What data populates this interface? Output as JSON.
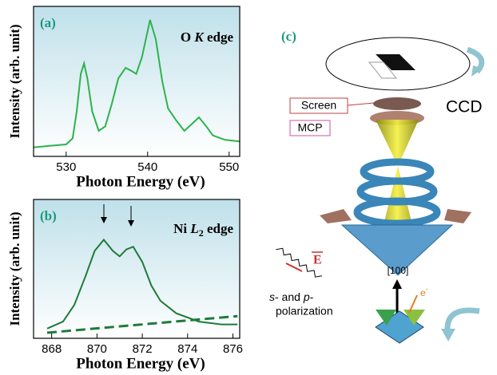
{
  "chart_data": [
    {
      "type": "line",
      "panel": "(a)",
      "annotation": [
        "O ",
        "K",
        " edge"
      ],
      "x_label": "Photon Energy (eV)",
      "y_label": "Intensity (arb. unit)",
      "xlim": [
        526,
        551.3
      ],
      "ylim": [
        0,
        1
      ],
      "xticks": [
        530,
        540,
        550
      ],
      "series": [
        {
          "color": "#2db34a",
          "x": [
            526,
            528,
            530,
            530.8,
            531.3,
            531.8,
            532.2,
            532.6,
            533.2,
            534,
            534.8,
            535.6,
            536.4,
            537.3,
            538,
            538.6,
            539.3,
            540.3,
            541,
            541.8,
            542.5,
            543.5,
            544.5,
            545.5,
            546.3,
            547.2,
            548,
            549.5,
            551.3
          ],
          "values": [
            0.06,
            0.07,
            0.08,
            0.12,
            0.3,
            0.55,
            0.62,
            0.52,
            0.3,
            0.17,
            0.2,
            0.35,
            0.52,
            0.59,
            0.57,
            0.55,
            0.66,
            0.91,
            0.78,
            0.5,
            0.32,
            0.24,
            0.17,
            0.22,
            0.26,
            0.2,
            0.14,
            0.11,
            0.1
          ]
        }
      ]
    },
    {
      "type": "line",
      "panel": "(b)",
      "annotation": [
        "Ni ",
        "L",
        "2",
        " edge"
      ],
      "x_label": "Photon Energy (eV)",
      "y_label": "Intensity (arb. unit)",
      "xlim": [
        867.2,
        876.3
      ],
      "ylim": [
        0,
        1
      ],
      "xticks": [
        868,
        870,
        872,
        874,
        876
      ],
      "series": [
        {
          "color": "#1f7a3a",
          "line_style": "solid",
          "x": [
            867.8,
            868.5,
            869,
            869.5,
            869.9,
            870.3,
            870.7,
            871,
            871.3,
            871.6,
            872,
            872.4,
            872.8,
            873.5,
            874.5,
            875.5,
            876.2
          ],
          "values": [
            0.07,
            0.12,
            0.24,
            0.45,
            0.63,
            0.71,
            0.63,
            0.59,
            0.64,
            0.66,
            0.55,
            0.38,
            0.27,
            0.18,
            0.12,
            0.1,
            0.1
          ]
        },
        {
          "color": "#1f7a3a",
          "line_style": "dashed",
          "x": [
            867.8,
            876.2
          ],
          "values": [
            0.04,
            0.16
          ]
        }
      ]
    }
  ],
  "diagram": {
    "panel": "(c)",
    "screen": "Screen",
    "ccd": "CCD",
    "mcp": "MCP",
    "field": "E",
    "direction": "[100]",
    "electron": [
      "e",
      "-"
    ],
    "polarization": [
      "s",
      "- and ",
      "p",
      "-",
      "polarization"
    ]
  }
}
